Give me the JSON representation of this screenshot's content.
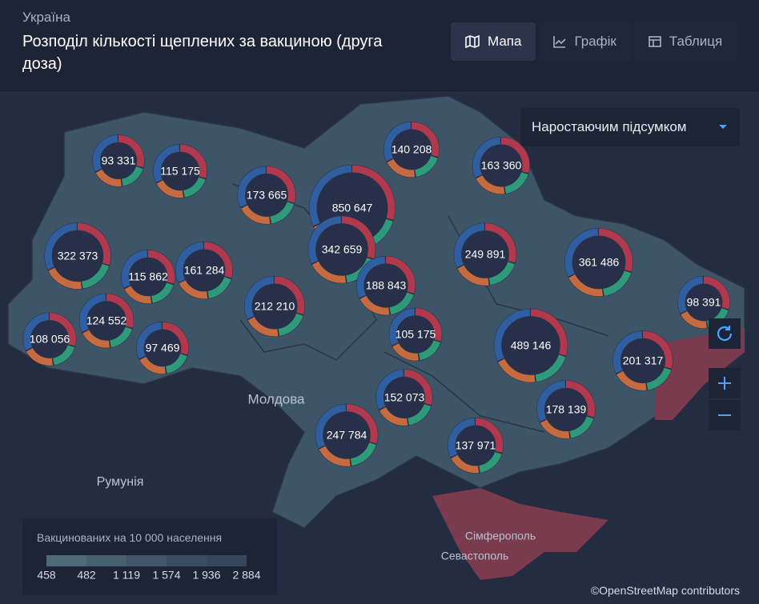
{
  "header": {
    "breadcrumb": "Україна",
    "title": "Розподіл кількості щеплених за вакциною (друга доза)"
  },
  "tabs": [
    {
      "label": "Мапа",
      "active": true
    },
    {
      "label": "Графік",
      "active": false
    },
    {
      "label": "Таблиця",
      "active": false
    }
  ],
  "dropdown": "Наростаючим підсумком",
  "map_labels": [
    "Молдова",
    "Румунія",
    "Сімферополь",
    "Севастополь"
  ],
  "donuts": [
    {
      "value": 93331,
      "label": "93 331"
    },
    {
      "value": 115175,
      "label": "115 175"
    },
    {
      "value": 173665,
      "label": "173 665"
    },
    {
      "value": 850647,
      "label": "850 647"
    },
    {
      "value": 140208,
      "label": "140 208"
    },
    {
      "value": 163360,
      "label": "163 360"
    },
    {
      "value": 322373,
      "label": "322 373"
    },
    {
      "value": 115862,
      "label": "115 862"
    },
    {
      "value": 161284,
      "label": "161 284"
    },
    {
      "value": 342659,
      "label": "342 659"
    },
    {
      "value": 249891,
      "label": "249 891"
    },
    {
      "value": 361486,
      "label": "361 486"
    },
    {
      "value": 98391,
      "label": "98 391"
    },
    {
      "value": 188843,
      "label": "188 843"
    },
    {
      "value": 212210,
      "label": "212 210"
    },
    {
      "value": 108056,
      "label": "108 056"
    },
    {
      "value": 124552,
      "label": "124 552"
    },
    {
      "value": 97469,
      "label": "97 469"
    },
    {
      "value": 105175,
      "label": "105 175"
    },
    {
      "value": 489146,
      "label": "489 146"
    },
    {
      "value": 201317,
      "label": "201 317"
    },
    {
      "value": 152073,
      "label": "152 073"
    },
    {
      "value": 178139,
      "label": "178 139"
    },
    {
      "value": 247784,
      "label": "247 784"
    },
    {
      "value": 137971,
      "label": "137 971"
    }
  ],
  "legend": {
    "title": "Вакцинованих на 10 000 населення",
    "labels": [
      "458",
      "482",
      "1 119",
      "1 574",
      "1 936",
      "2 884"
    ],
    "colors": [
      "#4d6a78",
      "#46606f",
      "#405668",
      "#3b4e61",
      "#37475b"
    ]
  },
  "attribution": "©OpenStreetMap contributors"
}
